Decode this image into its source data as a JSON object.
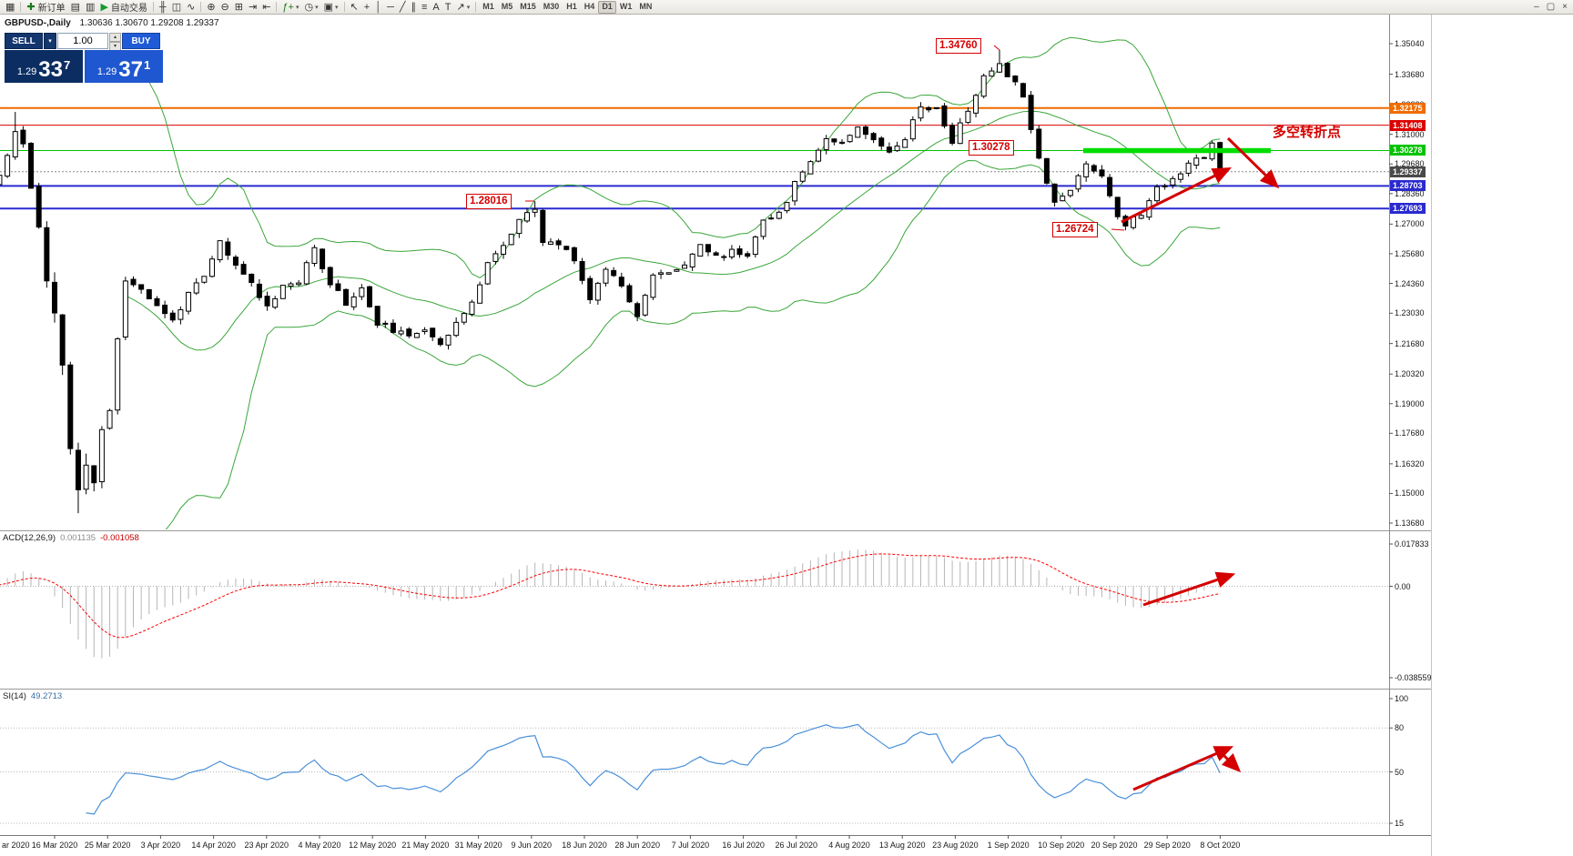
{
  "icons": {
    "caret_down": "▾",
    "caret_up": "▴"
  },
  "toolbar": {
    "items": [
      {
        "name": "charts-grid-icon",
        "glyph": "▦"
      },
      {
        "sep": true
      },
      {
        "name": "new-order-button",
        "glyph": "✚",
        "glyph_color": "#1a7a1a",
        "label": "新订单"
      },
      {
        "name": "chart-window-icon",
        "glyph": "▤"
      },
      {
        "name": "market-watch-icon",
        "glyph": "▥"
      },
      {
        "name": "autotrading-button",
        "glyph": "▶",
        "glyph_color": "#169a2f",
        "label": "自动交易"
      },
      {
        "sep": true
      },
      {
        "name": "bar-chart-icon",
        "glyph": "╫"
      },
      {
        "name": "candlestick-chart-icon",
        "glyph": "◫"
      },
      {
        "name": "line-chart-icon",
        "glyph": "∿"
      },
      {
        "sep": true
      },
      {
        "name": "zoom-in-icon",
        "glyph": "⊕"
      },
      {
        "name": "zoom-out-icon",
        "glyph": "⊖"
      },
      {
        "name": "tile-windows-icon",
        "glyph": "⊞"
      },
      {
        "name": "auto-scroll-icon",
        "glyph": "⇥"
      },
      {
        "name": "chart-shift-icon",
        "glyph": "⇤"
      },
      {
        "sep": true
      },
      {
        "name": "indicators-button",
        "glyph": "ƒ+",
        "glyph_color": "#1a7a1a",
        "dropdown": true
      },
      {
        "name": "periods-button",
        "glyph": "◷",
        "dropdown": true
      },
      {
        "name": "templates-button",
        "glyph": "▣",
        "dropdown": true
      },
      {
        "sep": true
      },
      {
        "name": "cursor-icon",
        "glyph": "↖"
      },
      {
        "name": "crosshair-icon",
        "glyph": "+"
      },
      {
        "name": "vertical-line-icon",
        "glyph": "│"
      },
      {
        "name": "horizontal-line-icon",
        "glyph": "─"
      },
      {
        "name": "trendline-icon",
        "glyph": "╱"
      },
      {
        "name": "channel-icon",
        "glyph": "∥"
      },
      {
        "name": "fibonacci-icon",
        "glyph": "≡"
      },
      {
        "name": "text-icon",
        "glyph": "A"
      },
      {
        "name": "text-label-icon",
        "glyph": "T"
      },
      {
        "name": "arrows-icon",
        "glyph": "↗",
        "dropdown": true
      },
      {
        "sep": true
      }
    ],
    "timeframes": [
      "M1",
      "M5",
      "M15",
      "M30",
      "H1",
      "H4",
      "D1",
      "W1",
      "MN"
    ],
    "active_timeframe": "D1",
    "window_controls": [
      {
        "name": "window-minimize-icon",
        "glyph": "–"
      },
      {
        "name": "window-restore-icon",
        "glyph": "▢"
      },
      {
        "name": "window-close-icon",
        "glyph": "×"
      }
    ]
  },
  "chart": {
    "title_text": "GBPUSD-,Daily",
    "ohlc_text": "1.30636 1.30670 1.29208 1.29337",
    "trade_panel": {
      "sell_label": "SELL",
      "buy_label": "BUY",
      "volume": "1.00",
      "bid_prefix": "1.29",
      "bid_main": "33",
      "bid_pip": "7",
      "ask_prefix": "1.29",
      "ask_main": "37",
      "ask_pip": "1"
    },
    "levels": [
      {
        "text": "1.32175",
        "value": 1.32175,
        "color": "#ef6c00"
      },
      {
        "text": "1.31408",
        "value": 1.31408,
        "color": "#dd0000"
      },
      {
        "text": "1.30278",
        "value": 1.30278,
        "color": "#00c300"
      },
      {
        "text": "1.28703",
        "value": 1.28703,
        "color": "#2a2ad0"
      },
      {
        "text": "1.27693",
        "value": 1.27693,
        "color": "#2a2ad0"
      }
    ],
    "current_price": {
      "text": "1.29337",
      "value": 1.29337,
      "color": "#4a4a4a"
    },
    "price_axis": [
      "1.35040",
      "1.33680",
      "1.32320",
      "1.31000",
      "1.29680",
      "1.28360",
      "1.27000",
      "1.25680",
      "1.24360",
      "1.23030",
      "1.21680",
      "1.20320",
      "1.19000",
      "1.17680",
      "1.16320",
      "1.15000",
      "1.13680"
    ],
    "date_axis": {
      "clipped_first": "ar 2020",
      "labels": [
        "16 Mar 2020",
        "25 Mar 2020",
        "3 Apr 2020",
        "14 Apr 2020",
        "23 Apr 2020",
        "4 May 2020",
        "12 May 2020",
        "21 May 2020",
        "31 May 2020",
        "9 Jun 2020",
        "18 Jun 2020",
        "28 Jun 2020",
        "7 Jul 2020",
        "16 Jul 2020",
        "26 Jul 2020",
        "4 Aug 2020",
        "13 Aug 2020",
        "23 Aug 2020",
        "1 Sep 2020",
        "10 Sep 2020",
        "20 Sep 2020",
        "29 Sep 2020",
        "8 Oct 2020"
      ]
    },
    "annotations": {
      "color": "#d40000",
      "highlight_color": "#00dd00",
      "turning_point_text": "多空转折点",
      "price_labels": [
        {
          "id": "swing-high",
          "text": "1.34760"
        },
        {
          "id": "pivot",
          "text": "1.30278"
        },
        {
          "id": "june-high",
          "text": "1.28016"
        },
        {
          "id": "swing-low",
          "text": "1.26724"
        }
      ]
    }
  },
  "indicators": {
    "macd": {
      "label": "ACD(12,26,9)",
      "main_value": "0.001135",
      "signal_value": "-0.001058",
      "scale": [
        {
          "text": "0.017833",
          "v": 0.017833
        },
        {
          "text": "0.00",
          "v": 0
        },
        {
          "text": "-0.038559",
          "v": -0.038559
        }
      ],
      "histogram_color": "#b6b6b6",
      "signal_color": "#ff0000"
    },
    "rsi": {
      "label": "SI(14)",
      "value": "49.2713",
      "scale": [
        {
          "text": "100",
          "v": 100
        },
        {
          "text": "80",
          "v": 80
        },
        {
          "text": "50",
          "v": 50
        },
        {
          "text": "15",
          "v": 15
        }
      ],
      "levels": [
        80,
        50,
        15
      ],
      "line_color": "#4a90d9"
    }
  },
  "chart_data": {
    "type": "candlestick",
    "symbol": "GBPUSD-",
    "timeframe": "Daily",
    "title": "GBPUSD-,Daily",
    "current_ohlc": {
      "open": 1.30636,
      "high": 1.3067,
      "low": 1.29208,
      "close": 1.29337
    },
    "bid": 1.29337,
    "ask": 1.29371,
    "y_range": [
      1.1368,
      1.3504
    ],
    "x_range": [
      "Mar 2020",
      "8 Oct 2020"
    ],
    "days": 159,
    "price_anchors": [
      [
        0,
        1.277
      ],
      [
        3,
        1.292
      ],
      [
        5,
        1.311
      ],
      [
        6,
        1.306
      ],
      [
        8,
        1.267
      ],
      [
        9,
        1.243
      ],
      [
        10,
        1.228
      ],
      [
        11,
        1.208
      ],
      [
        12,
        1.17
      ],
      [
        13,
        1.15
      ],
      [
        14,
        1.163
      ],
      [
        15,
        1.155
      ],
      [
        16,
        1.179
      ],
      [
        17,
        1.188
      ],
      [
        18,
        1.218
      ],
      [
        19,
        1.245
      ],
      [
        21,
        1.2415
      ],
      [
        23,
        1.233
      ],
      [
        25,
        1.227
      ],
      [
        27,
        1.239
      ],
      [
        29,
        1.246
      ],
      [
        31,
        1.262
      ],
      [
        33,
        1.251
      ],
      [
        35,
        1.244
      ],
      [
        37,
        1.233
      ],
      [
        39,
        1.243
      ],
      [
        41,
        1.244
      ],
      [
        43,
        1.259
      ],
      [
        45,
        1.244
      ],
      [
        47,
        1.235
      ],
      [
        49,
        1.241
      ],
      [
        51,
        1.226
      ],
      [
        53,
        1.223
      ],
      [
        55,
        1.219
      ],
      [
        57,
        1.224
      ],
      [
        59,
        1.217
      ],
      [
        61,
        1.226
      ],
      [
        63,
        1.234
      ],
      [
        65,
        1.254
      ],
      [
        67,
        1.26
      ],
      [
        69,
        1.272
      ],
      [
        71,
        1.276
      ],
      [
        72,
        1.262
      ],
      [
        74,
        1.261
      ],
      [
        76,
        1.255
      ],
      [
        78,
        1.236
      ],
      [
        80,
        1.251
      ],
      [
        82,
        1.243
      ],
      [
        84,
        1.23
      ],
      [
        86,
        1.247
      ],
      [
        88,
        1.248
      ],
      [
        90,
        1.253
      ],
      [
        92,
        1.261
      ],
      [
        94,
        1.255
      ],
      [
        96,
        1.258
      ],
      [
        98,
        1.256
      ],
      [
        100,
        1.273
      ],
      [
        102,
        1.274
      ],
      [
        104,
        1.288
      ],
      [
        106,
        1.299
      ],
      [
        108,
        1.308
      ],
      [
        110,
        1.307
      ],
      [
        112,
        1.314
      ],
      [
        114,
        1.307
      ],
      [
        116,
        1.303
      ],
      [
        118,
        1.309
      ],
      [
        120,
        1.323
      ],
      [
        122,
        1.321
      ],
      [
        124,
        1.307
      ],
      [
        126,
        1.321
      ],
      [
        128,
        1.335
      ],
      [
        130,
        1.342
      ],
      [
        131,
        1.337
      ],
      [
        133,
        1.328
      ],
      [
        135,
        1.299
      ],
      [
        137,
        1.28
      ],
      [
        139,
        1.285
      ],
      [
        141,
        1.297
      ],
      [
        143,
        1.292
      ],
      [
        145,
        1.274
      ],
      [
        146,
        1.27
      ],
      [
        148,
        1.2745
      ],
      [
        150,
        1.286
      ],
      [
        152,
        1.29
      ],
      [
        154,
        1.2975
      ],
      [
        156,
        1.2995
      ],
      [
        157,
        1.306
      ],
      [
        158,
        1.2934
      ]
    ],
    "forced_points": {
      "5": {
        "high": 1.32
      },
      "13": {
        "low": 1.1412
      },
      "71": {
        "high": 1.28016
      },
      "130": {
        "high": 1.3476
      },
      "146": {
        "low": 1.26724
      }
    },
    "overlays": {
      "bollinger_period": 20,
      "bollinger_dev": 2,
      "bollinger_color": "#3aa63a"
    },
    "indicator_settings": {
      "macd": [
        12,
        26,
        9
      ],
      "rsi": 14
    },
    "key_levels": {
      "resistance": [
        1.32175,
        1.31408
      ],
      "pivot": 1.30278,
      "supports": [
        1.28703,
        1.27693
      ],
      "marked_high": 1.3476,
      "marked_low": 1.26724,
      "marked_june_high": 1.28016
    }
  }
}
